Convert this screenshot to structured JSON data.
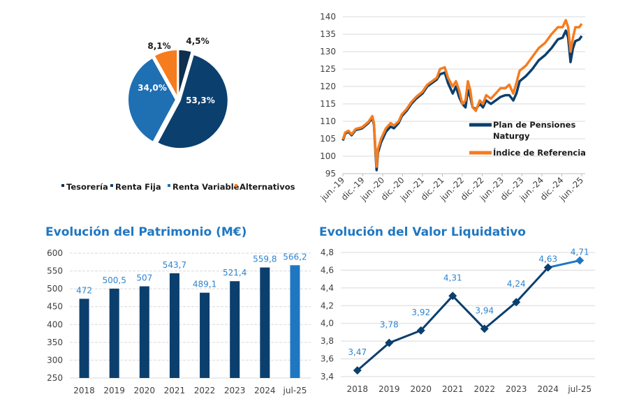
{
  "chart_data": [
    {
      "id": "pie",
      "type": "pie",
      "title": "",
      "slices": [
        {
          "label": "Tesorería",
          "value": 4.5,
          "display": "4,5%",
          "color": "#0e2f4f"
        },
        {
          "label": "Renta Fija",
          "value": 53.3,
          "display": "53,3%",
          "color": "#0b3f6e"
        },
        {
          "label": "Renta Variable",
          "value": 34.0,
          "display": "34,0%",
          "color": "#1f6fb3"
        },
        {
          "label": "Alternativos",
          "value": 8.1,
          "display": "8,1%",
          "color": "#f57c1f"
        }
      ],
      "legend_position": "bottom"
    },
    {
      "id": "performance",
      "type": "line",
      "title": "",
      "ylim": [
        95,
        140
      ],
      "yticks": [
        95,
        100,
        105,
        110,
        115,
        120,
        125,
        130,
        135,
        140
      ],
      "xticks": [
        "jun.-19",
        "dic.-19",
        "jun.-20",
        "dic.-20",
        "jun.-21",
        "dic.-21",
        "jun.-22",
        "dic.-22",
        "jun.-23",
        "dic.-23",
        "jun.-24",
        "dic.-24",
        "jun.-25"
      ],
      "grid": true,
      "legend_position": "right",
      "series": [
        {
          "name": "Plan de Pensiones Naturgy",
          "color": "#0b3f6e",
          "points": [
            [
              0,
              104.5
            ],
            [
              0.15,
              106.5
            ],
            [
              0.35,
              107
            ],
            [
              0.55,
              106
            ],
            [
              0.8,
              107.5
            ],
            [
              1.2,
              108
            ],
            [
              1.6,
              109.5
            ],
            [
              1.85,
              111
            ],
            [
              1.95,
              109
            ],
            [
              2.05,
              101
            ],
            [
              2.12,
              96
            ],
            [
              2.2,
              101
            ],
            [
              2.4,
              104
            ],
            [
              2.7,
              107
            ],
            [
              3.0,
              108.5
            ],
            [
              3.2,
              108
            ],
            [
              3.5,
              109.5
            ],
            [
              3.7,
              111.5
            ],
            [
              4.0,
              113
            ],
            [
              4.3,
              115
            ],
            [
              4.6,
              116.5
            ],
            [
              5.0,
              118
            ],
            [
              5.3,
              120
            ],
            [
              5.6,
              121
            ],
            [
              5.9,
              122
            ],
            [
              6.1,
              123.5
            ],
            [
              6.4,
              124
            ],
            [
              6.6,
              121
            ],
            [
              6.9,
              118
            ],
            [
              7.1,
              120
            ],
            [
              7.3,
              117
            ],
            [
              7.5,
              115
            ],
            [
              7.7,
              114
            ],
            [
              7.85,
              119
            ],
            [
              8.0,
              117
            ],
            [
              8.15,
              114
            ],
            [
              8.35,
              113.5
            ],
            [
              8.6,
              115
            ],
            [
              8.8,
              114
            ],
            [
              9.0,
              116
            ],
            [
              9.3,
              115
            ],
            [
              9.6,
              116
            ],
            [
              9.9,
              117
            ],
            [
              10.2,
              117.5
            ],
            [
              10.45,
              117.5
            ],
            [
              10.7,
              116
            ],
            [
              10.9,
              118
            ],
            [
              11.1,
              121.5
            ],
            [
              11.5,
              123
            ],
            [
              11.9,
              125
            ],
            [
              12.3,
              127.5
            ],
            [
              12.7,
              129
            ],
            [
              13.1,
              131
            ],
            [
              13.5,
              133.5
            ],
            [
              13.8,
              134
            ],
            [
              14.0,
              136
            ],
            [
              14.15,
              134
            ],
            [
              14.3,
              127
            ],
            [
              14.45,
              131
            ],
            [
              14.6,
              133
            ],
            [
              14.85,
              133.5
            ],
            [
              15.0,
              134.5
            ]
          ]
        },
        {
          "name": "Índice de Referencia",
          "color": "#f57c1f",
          "points": [
            [
              0,
              104.8
            ],
            [
              0.15,
              106.8
            ],
            [
              0.35,
              107.3
            ],
            [
              0.55,
              106.3
            ],
            [
              0.8,
              107.8
            ],
            [
              1.2,
              108.3
            ],
            [
              1.6,
              109.8
            ],
            [
              1.85,
              111.5
            ],
            [
              1.95,
              109.5
            ],
            [
              2.05,
              102
            ],
            [
              2.12,
              97
            ],
            [
              2.2,
              102
            ],
            [
              2.4,
              105
            ],
            [
              2.7,
              108
            ],
            [
              3.0,
              109.5
            ],
            [
              3.2,
              108.8
            ],
            [
              3.5,
              110
            ],
            [
              3.7,
              112
            ],
            [
              4.0,
              113.5
            ],
            [
              4.3,
              115.5
            ],
            [
              4.6,
              117
            ],
            [
              5.0,
              118.5
            ],
            [
              5.3,
              120.5
            ],
            [
              5.6,
              121.5
            ],
            [
              5.9,
              122.5
            ],
            [
              6.1,
              125
            ],
            [
              6.4,
              125.5
            ],
            [
              6.6,
              122.5
            ],
            [
              6.9,
              120
            ],
            [
              7.1,
              121.5
            ],
            [
              7.3,
              119
            ],
            [
              7.5,
              115
            ],
            [
              7.7,
              116
            ],
            [
              7.85,
              121.5
            ],
            [
              8.0,
              119
            ],
            [
              8.15,
              114
            ],
            [
              8.35,
              113
            ],
            [
              8.6,
              116
            ],
            [
              8.8,
              115
            ],
            [
              9.0,
              117.5
            ],
            [
              9.3,
              116.5
            ],
            [
              9.6,
              118
            ],
            [
              9.9,
              119.5
            ],
            [
              10.2,
              119.5
            ],
            [
              10.45,
              120.5
            ],
            [
              10.7,
              118
            ],
            [
              10.9,
              121
            ],
            [
              11.1,
              124.5
            ],
            [
              11.5,
              126
            ],
            [
              11.9,
              128.5
            ],
            [
              12.3,
              131
            ],
            [
              12.7,
              132.5
            ],
            [
              13.1,
              135
            ],
            [
              13.5,
              137
            ],
            [
              13.8,
              137
            ],
            [
              14.0,
              139
            ],
            [
              14.15,
              137
            ],
            [
              14.3,
              130
            ],
            [
              14.45,
              134
            ],
            [
              14.6,
              137
            ],
            [
              14.85,
              137
            ],
            [
              15.0,
              138
            ]
          ]
        }
      ]
    },
    {
      "id": "patrimonio",
      "type": "bar",
      "title": "Evolución del Patrimonio (M€)",
      "categories": [
        "2018",
        "2019",
        "2020",
        "2021",
        "2022",
        "2023",
        "2024",
        "jul-25"
      ],
      "values": [
        472,
        500.5,
        507,
        543.7,
        489.1,
        521.4,
        559.8,
        566.2
      ],
      "labels": [
        "472",
        "500,5",
        "507",
        "543,7",
        "489,1",
        "521,4",
        "559,8",
        "566,2"
      ],
      "colors": [
        "#0b3f6e",
        "#0b3f6e",
        "#0b3f6e",
        "#0b3f6e",
        "#0b3f6e",
        "#0b3f6e",
        "#0b3f6e",
        "#1f77c2"
      ],
      "ylim": [
        250,
        600
      ],
      "yticks": [
        "250",
        "300",
        "350",
        "400",
        "450",
        "500",
        "550",
        "600"
      ],
      "grid": true
    },
    {
      "id": "valor_liquidativo",
      "type": "line",
      "title": "Evolución del Valor Liquidativo",
      "categories": [
        "2018",
        "2019",
        "2020",
        "2021",
        "2022",
        "2023",
        "2024",
        "jul-25"
      ],
      "values": [
        3.47,
        3.78,
        3.92,
        4.31,
        3.94,
        4.24,
        4.63,
        4.71
      ],
      "labels": [
        "3,47",
        "3,78",
        "3,92",
        "4,31",
        "3,94",
        "4,24",
        "4,63",
        "4,71"
      ],
      "ylim": [
        3.4,
        4.8
      ],
      "yticks": [
        "3,4",
        "3,6",
        "3,8",
        "4,0",
        "4,2",
        "4,4",
        "4,6",
        "4,8"
      ],
      "grid": true,
      "line_color": "#0b3f6e",
      "last_segment_color": "#1f77c2"
    }
  ],
  "pie_legend": [
    "Tesorería",
    "Renta Fija",
    "Renta Variable",
    "Alternativos"
  ],
  "perf_legend": {
    "line1a": "Plan de Pensiones",
    "line1b": "Naturgy",
    "line2": "Índice de Referencia"
  },
  "titles": {
    "patrimonio": "Evolución del Patrimonio (M€)",
    "valor": "Evolución del Valor Liquidativo"
  }
}
